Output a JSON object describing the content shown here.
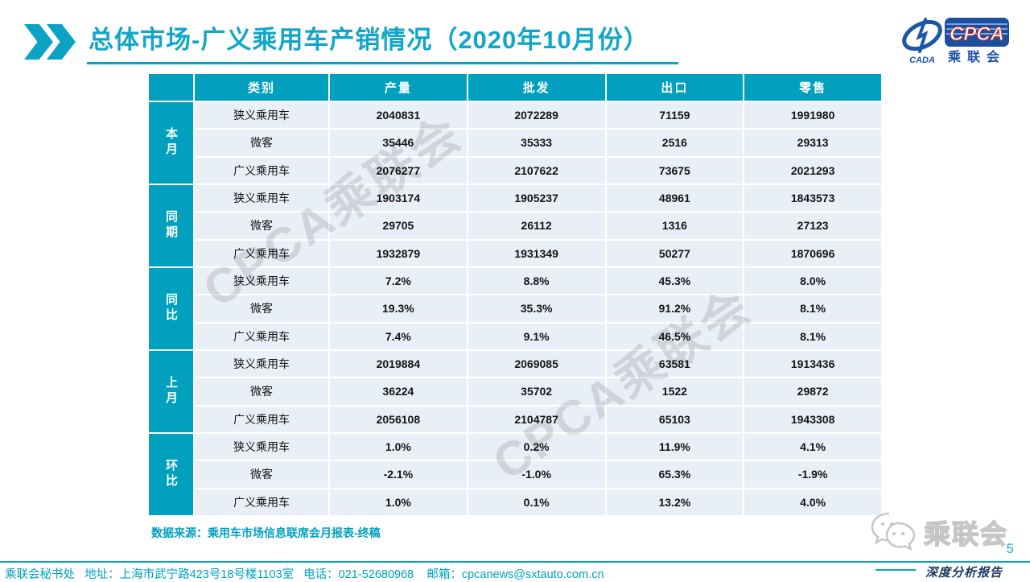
{
  "accent_color": "#00A0BE",
  "row_bg_color": "#E9EFF7",
  "header": {
    "title": "总体市场-广义乘用车产销情况（2020年10月份）",
    "logo": {
      "swoosh_caption": "CADA",
      "acronym": "CPCA",
      "name_cn": "乘联会"
    }
  },
  "table": {
    "columns": [
      "类别",
      "产量",
      "批发",
      "出口",
      "零售"
    ],
    "groups": [
      {
        "label": "本月",
        "rows": [
          {
            "category": "狭义乘用车",
            "values": [
              "2040831",
              "2072289",
              "71159",
              "1991980"
            ]
          },
          {
            "category": "微客",
            "values": [
              "35446",
              "35333",
              "2516",
              "29313"
            ]
          },
          {
            "category": "广义乘用车",
            "values": [
              "2076277",
              "2107622",
              "73675",
              "2021293"
            ]
          }
        ]
      },
      {
        "label": "同期",
        "rows": [
          {
            "category": "狭义乘用车",
            "values": [
              "1903174",
              "1905237",
              "48961",
              "1843573"
            ]
          },
          {
            "category": "微客",
            "values": [
              "29705",
              "26112",
              "1316",
              "27123"
            ]
          },
          {
            "category": "广义乘用车",
            "values": [
              "1932879",
              "1931349",
              "50277",
              "1870696"
            ]
          }
        ]
      },
      {
        "label": "同比",
        "rows": [
          {
            "category": "狭义乘用车",
            "values": [
              "7.2%",
              "8.8%",
              "45.3%",
              "8.0%"
            ]
          },
          {
            "category": "微客",
            "values": [
              "19.3%",
              "35.3%",
              "91.2%",
              "8.1%"
            ]
          },
          {
            "category": "广义乘用车",
            "values": [
              "7.4%",
              "9.1%",
              "46.5%",
              "8.1%"
            ]
          }
        ]
      },
      {
        "label": "上月",
        "rows": [
          {
            "category": "狭义乘用车",
            "values": [
              "2019884",
              "2069085",
              "63581",
              "1913436"
            ]
          },
          {
            "category": "微客",
            "values": [
              "36224",
              "35702",
              "1522",
              "29872"
            ]
          },
          {
            "category": "广义乘用车",
            "values": [
              "2056108",
              "2104787",
              "65103",
              "1943308"
            ]
          }
        ]
      },
      {
        "label": "环比",
        "rows": [
          {
            "category": "狭义乘用车",
            "values": [
              "1.0%",
              "0.2%",
              "11.9%",
              "4.1%"
            ]
          },
          {
            "category": "微客",
            "values": [
              "-2.1%",
              "-1.0%",
              "65.3%",
              "-1.9%"
            ]
          },
          {
            "category": "广义乘用车",
            "values": [
              "1.0%",
              "0.1%",
              "13.2%",
              "4.0%"
            ]
          }
        ]
      }
    ]
  },
  "watermark": {
    "text": "CPCA乘联会"
  },
  "source_note": "数据来源：乘用车市场信息联席会月报表-终稿",
  "footer": {
    "text": "乘联会秘书处   地址：上海市武宁路423号18号楼1103室   电话：021-52680968    邮箱：cpcanews@sxtauto.com.cn",
    "page_number": "5",
    "report_tag": "深度分析报告",
    "wechat_label": "乘联会"
  }
}
